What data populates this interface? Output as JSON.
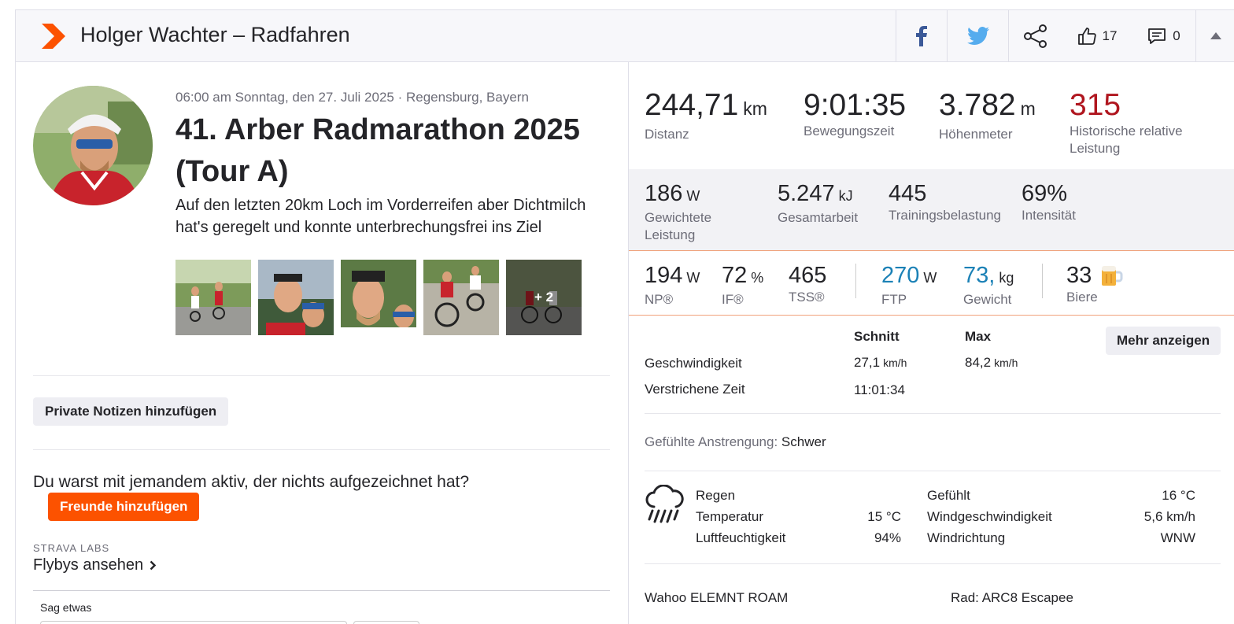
{
  "header": {
    "title": "Holger Wachter – Radfahren",
    "kudos_count": "17",
    "comments_count": "0",
    "brand_color": "#fc5200"
  },
  "activity": {
    "meta": "06:00 am Sonntag, den 27. Juli 2025 · Regensburg, Bayern",
    "title": "41. Arber Radmarathon 2025 (Tour A)",
    "description": "Auf den letzten 20km Loch im Vorderreifen aber Dichtmilch hat's geregelt und konnte unterbrechungsfrei ins Ziel",
    "more_photos": "+ 2"
  },
  "left": {
    "private_notes_button": "Private Notizen hinzufügen",
    "question": "Du warst mit jemandem aktiv, der nichts aufgezeichnet hat?",
    "add_friends_button": "Freunde hinzufügen",
    "labs_label": "STRAVA LABS",
    "flybys_link": "Flybys ansehen",
    "comment_label": "Sag etwas"
  },
  "stats_primary": [
    {
      "value": "244,71",
      "unit": "km",
      "label": "Distanz"
    },
    {
      "value": "9:01:35",
      "unit": "",
      "label": "Bewegungszeit"
    },
    {
      "value": "3.782",
      "unit": "m",
      "label": "Höhenmeter"
    },
    {
      "value": "315",
      "unit": "",
      "label": "Historische relative Leistung"
    }
  ],
  "stats_secondary": [
    {
      "value": "186",
      "unit": "W",
      "label": "Gewichtete Leistung"
    },
    {
      "value": "5.247",
      "unit": "kJ",
      "label": "Gesamtarbeit"
    },
    {
      "value": "445",
      "unit": "",
      "label": "Trainingsbelastung"
    },
    {
      "value": "69%",
      "unit": "",
      "label": "Intensität"
    }
  ],
  "stats_tertiary": [
    {
      "value": "194",
      "unit": "W",
      "label": "NP®"
    },
    {
      "value": "72",
      "unit": "%",
      "label": "IF®"
    },
    {
      "value": "465",
      "unit": "",
      "label": "TSS®"
    },
    {
      "value": "270",
      "unit": "W",
      "label": "FTP"
    },
    {
      "value": "73,",
      "unit": "kg",
      "label": "Gewicht"
    },
    {
      "value": "33",
      "unit": "",
      "label": "Biere"
    }
  ],
  "details": {
    "col_avg": "Schnitt",
    "col_max": "Max",
    "more_button": "Mehr anzeigen",
    "speed_label": "Geschwindigkeit",
    "speed_avg": "27,1",
    "speed_max": "84,2",
    "speed_unit": "km/h",
    "elapsed_label": "Verstrichene Zeit",
    "elapsed_value": "11:01:34"
  },
  "effort": {
    "label": "Gefühlte Anstrengung:",
    "value": "Schwer"
  },
  "weather": {
    "condition": "Regen",
    "temp_label": "Temperatur",
    "temp_value": "15 °C",
    "humidity_label": "Luftfeuchtigkeit",
    "humidity_value": "94%",
    "feels_label": "Gefühlt",
    "feels_value": "16 °C",
    "wind_speed_label": "Windgeschwindigkeit",
    "wind_speed_value": "5,6 km/h",
    "wind_dir_label": "Windrichtung",
    "wind_dir_value": "WNW"
  },
  "gear": {
    "device": "Wahoo ELEMNT ROAM",
    "bike": "Rad: ARC8 Escapee"
  }
}
